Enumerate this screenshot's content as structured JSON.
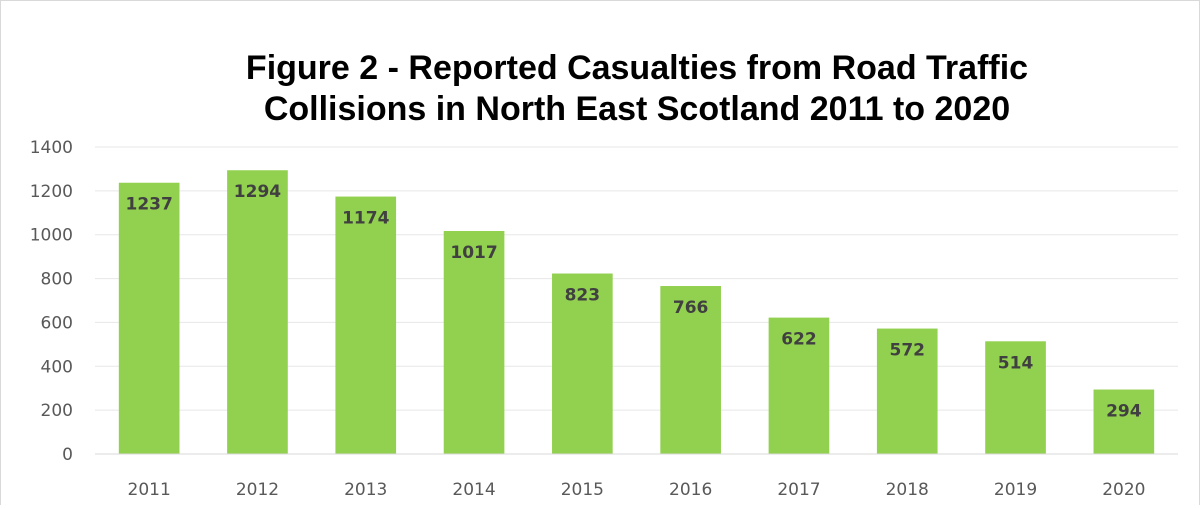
{
  "chart_data": {
    "type": "bar",
    "title_lines": [
      "Figure 2 - Reported Casualties from Road Traffic",
      "Collisions in North East Scotland 2011 to 2020"
    ],
    "categories": [
      "2011",
      "2012",
      "2013",
      "2014",
      "2015",
      "2016",
      "2017",
      "2018",
      "2019",
      "2020"
    ],
    "values": [
      1237,
      1294,
      1174,
      1017,
      823,
      766,
      622,
      572,
      514,
      294
    ],
    "y_ticks": [
      0,
      200,
      400,
      600,
      800,
      1000,
      1200,
      1400
    ],
    "ylim": [
      0,
      1400
    ],
    "xlabel": "",
    "ylabel": "",
    "grid": true,
    "legend": "none",
    "bar_color": "#92d050",
    "gridline_color": "#e7e7e7",
    "axis_color": "#d9d9d9"
  }
}
